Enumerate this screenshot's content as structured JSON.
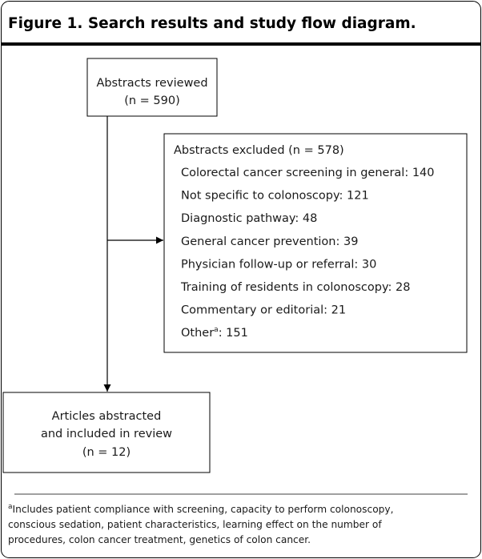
{
  "title": "Figure 1. Search results and study flow diagram.",
  "nodes": [
    {
      "lines": [
        "Abstracts reviewed",
        "(n = 590)"
      ]
    },
    {
      "header": "Abstracts excluded (n = 578)",
      "items": [
        {
          "text": "Colorectal cancer screening in general: 140"
        },
        {
          "text": "Not specific to colonoscopy: 121"
        },
        {
          "text": "Diagnostic pathway: 48"
        },
        {
          "text": "General cancer prevention: 39"
        },
        {
          "text": "Physician follow-up or referral: 30"
        },
        {
          "text": "Training of residents in colonoscopy: 28"
        },
        {
          "text": "Commentary or editorial: 21"
        },
        {
          "text": "Other",
          "sup": "a",
          "rest": ": 151"
        }
      ]
    },
    {
      "lines": [
        "Articles abstracted",
        "and included in review",
        "(n = 12)"
      ]
    }
  ],
  "footnote": {
    "marker": "a",
    "lines": [
      "Includes patient compliance with screening, capacity to perform colonoscopy,",
      "conscious sedation, patient characteristics, learning effect on the number of",
      "procedures, colon cancer treatment, genetics of colon cancer."
    ]
  }
}
